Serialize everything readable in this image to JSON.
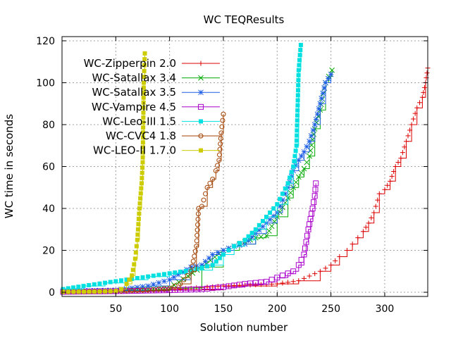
{
  "chart_data": {
    "type": "line",
    "title": "WC TEQResults",
    "xlabel": "Solution number",
    "ylabel": "WC time in seconds",
    "xlim": [
      0,
      340
    ],
    "ylim": [
      -2,
      122
    ],
    "xticks": [
      50,
      100,
      150,
      200,
      250,
      300
    ],
    "yticks": [
      0,
      20,
      40,
      60,
      80,
      100,
      120
    ],
    "grid": true,
    "legend_position": "top-left",
    "series": [
      {
        "name": "WC-Zipperpin 2.0",
        "color": "#dd0000",
        "marker": "plus",
        "x": [
          1,
          50,
          100,
          150,
          200,
          220,
          240,
          250,
          258,
          265,
          270,
          275,
          280,
          285,
          290,
          295,
          300,
          305,
          310,
          315,
          320,
          325,
          330,
          335,
          338,
          340
        ],
        "y": [
          0.3,
          0.5,
          1.2,
          3,
          4,
          5.5,
          10,
          13,
          17,
          20,
          23,
          26,
          29,
          33,
          38,
          47,
          49,
          53,
          60,
          64,
          72,
          80,
          88,
          93,
          100,
          107
        ]
      },
      {
        "name": "WC-Satallax 3.4",
        "color": "#00aa00",
        "marker": "x",
        "x": [
          1,
          50,
          100,
          130,
          150,
          165,
          180,
          190,
          200,
          210,
          215,
          220,
          225,
          230,
          235,
          240,
          245,
          248,
          251
        ],
        "y": [
          0.5,
          0.8,
          2,
          12,
          20,
          23,
          26,
          27,
          36,
          45,
          50,
          55,
          59,
          65,
          78,
          87,
          100,
          103,
          106
        ]
      },
      {
        "name": "WC-Satallax 3.5",
        "color": "#1f5fe6",
        "marker": "star",
        "x": [
          1,
          50,
          80,
          100,
          120,
          130,
          140,
          150,
          160,
          170,
          180,
          190,
          200,
          205,
          210,
          215,
          220,
          225,
          230,
          235,
          240,
          245,
          250
        ],
        "y": [
          0.5,
          1,
          3,
          6,
          12,
          13,
          18,
          20,
          22,
          23,
          28,
          33,
          38,
          44,
          50,
          58,
          63,
          67,
          72,
          80,
          90,
          100,
          104
        ]
      },
      {
        "name": "WC-Vampire 4.5",
        "color": "#aa00cc",
        "marker": "square-open",
        "x": [
          1,
          50,
          100,
          130,
          150,
          170,
          190,
          200,
          210,
          215,
          220,
          225,
          227,
          229,
          231,
          233,
          235,
          236
        ],
        "y": [
          0.2,
          0.5,
          1,
          1.5,
          2.5,
          4,
          5,
          7,
          9,
          10,
          13,
          18,
          24,
          30,
          35,
          40,
          46,
          52
        ]
      },
      {
        "name": "WC-Leo-III 1.5",
        "color": "#00e0e0",
        "marker": "square-filled",
        "x": [
          1,
          20,
          40,
          60,
          80,
          100,
          120,
          140,
          150,
          160,
          170,
          180,
          190,
          200,
          210,
          215,
          218,
          220,
          222
        ],
        "y": [
          1.5,
          3,
          4.5,
          6,
          7.5,
          9,
          10.5,
          13,
          18,
          22,
          25,
          30,
          36,
          42,
          52,
          60,
          70,
          106,
          118
        ]
      },
      {
        "name": "WC-CVC4 1.8",
        "color": "#a04000",
        "marker": "circle-open",
        "x": [
          1,
          50,
          80,
          100,
          110,
          120,
          125,
          127,
          130,
          135,
          140,
          143,
          146,
          148,
          150
        ],
        "y": [
          0.2,
          0.5,
          1,
          2,
          4,
          10,
          22,
          40,
          41,
          50,
          54,
          58,
          63,
          76,
          85
        ]
      },
      {
        "name": "WC-LEO-II 1.7.0",
        "color": "#cccc00",
        "marker": "square-filled",
        "x": [
          1,
          30,
          50,
          55,
          60,
          65,
          68,
          70,
          72,
          74,
          75,
          76,
          77
        ],
        "y": [
          0.2,
          0.3,
          0.6,
          1.5,
          4,
          8,
          16,
          25,
          40,
          52,
          62,
          100,
          114
        ]
      }
    ]
  }
}
